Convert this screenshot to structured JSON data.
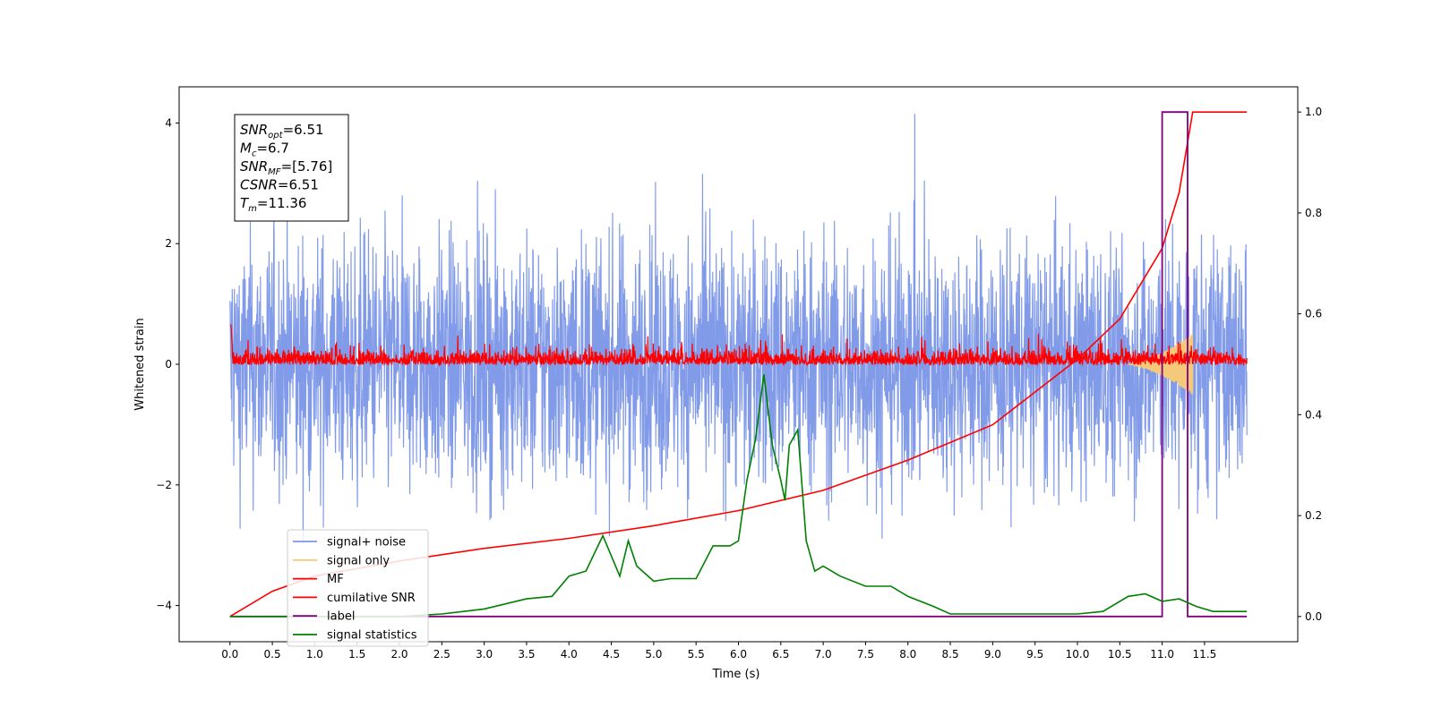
{
  "chart_data": {
    "type": "line",
    "xlabel": "Time (s)",
    "ylabel": "Whitened strain",
    "xlim": [
      -0.6,
      12.6
    ],
    "ylim_left": [
      -4.6,
      4.6
    ],
    "ylim_right": [
      -0.05,
      1.05
    ],
    "x_ticks": [
      "0.0",
      "0.5",
      "1.0",
      "1.5",
      "2.0",
      "2.5",
      "3.0",
      "3.5",
      "4.0",
      "4.5",
      "5.0",
      "5.5",
      "6.0",
      "6.5",
      "7.0",
      "7.5",
      "8.0",
      "8.5",
      "9.0",
      "9.5",
      "10.0",
      "10.5",
      "11.0",
      "11.5"
    ],
    "y_ticks_left": [
      "4",
      "2",
      "0",
      "−2",
      "−4"
    ],
    "y_ticks_right": [
      "1.0",
      "0.8",
      "0.6",
      "0.4",
      "0.2",
      "0.0"
    ],
    "grid": false,
    "legend_position": "lower-left",
    "annotation": {
      "lines": [
        {
          "base": "SNR",
          "sub": "opt",
          "value": "=6.51"
        },
        {
          "base": "M",
          "sub": "c",
          "value": "=6.7"
        },
        {
          "base": "SNR",
          "sub": "MF",
          "value": "=[5.76]"
        },
        {
          "base": "CSNR",
          "sub": "",
          "value": "=6.51"
        },
        {
          "base": "T",
          "sub": "m",
          "value": "=11.36"
        }
      ]
    },
    "series": [
      {
        "name": "signal+ noise",
        "color": "#7b96e8",
        "axis": "left",
        "style": "dense noise, envelope approx ±2.5, peaks up to ~4.1"
      },
      {
        "name": "signal only",
        "color": "#f5c97a",
        "axis": "left",
        "chirp": {
          "t_start": 10.6,
          "t_end": 11.36,
          "max_amplitude": 0.5
        }
      },
      {
        "name": "MF",
        "color": "#ff0000",
        "axis": "left",
        "style": "dense noise, baseline ~0, range approx -0.3 to 0.6"
      },
      {
        "name": "cumilative SNR",
        "color": "#ff0000",
        "axis": "right",
        "x": [
          0.0,
          0.5,
          1.0,
          2.0,
          3.0,
          4.0,
          5.0,
          6.0,
          7.0,
          8.0,
          9.0,
          10.0,
          10.5,
          11.0,
          11.2,
          11.36,
          12.0
        ],
        "y": [
          0.0,
          0.05,
          0.08,
          0.11,
          0.135,
          0.155,
          0.18,
          0.21,
          0.25,
          0.31,
          0.38,
          0.51,
          0.59,
          0.73,
          0.84,
          1.0,
          1.0
        ]
      },
      {
        "name": "label",
        "color": "#800080",
        "axis": "right",
        "x": [
          0.0,
          11.0,
          11.0,
          11.3,
          11.3,
          12.0
        ],
        "y": [
          0.0,
          0.0,
          1.0,
          1.0,
          0.0,
          0.0
        ]
      },
      {
        "name": "signal statistics",
        "color": "#008000",
        "axis": "right",
        "x": [
          0.0,
          2.0,
          2.5,
          3.0,
          3.5,
          3.8,
          4.0,
          4.2,
          4.4,
          4.5,
          4.6,
          4.7,
          4.8,
          5.0,
          5.2,
          5.5,
          5.7,
          5.9,
          6.0,
          6.1,
          6.2,
          6.3,
          6.4,
          6.5,
          6.55,
          6.6,
          6.7,
          6.8,
          6.9,
          7.0,
          7.2,
          7.5,
          7.8,
          8.0,
          8.3,
          8.5,
          9.0,
          10.0,
          10.3,
          10.6,
          10.8,
          11.0,
          11.2,
          11.4,
          11.6,
          11.8,
          12.0
        ],
        "y": [
          0.0,
          0.0,
          0.005,
          0.015,
          0.035,
          0.04,
          0.08,
          0.09,
          0.16,
          0.12,
          0.08,
          0.15,
          0.1,
          0.07,
          0.075,
          0.075,
          0.14,
          0.14,
          0.15,
          0.27,
          0.35,
          0.48,
          0.34,
          0.27,
          0.23,
          0.34,
          0.37,
          0.15,
          0.09,
          0.1,
          0.08,
          0.06,
          0.06,
          0.04,
          0.02,
          0.005,
          0.005,
          0.005,
          0.01,
          0.04,
          0.045,
          0.03,
          0.035,
          0.02,
          0.01,
          0.01,
          0.01
        ]
      }
    ]
  }
}
